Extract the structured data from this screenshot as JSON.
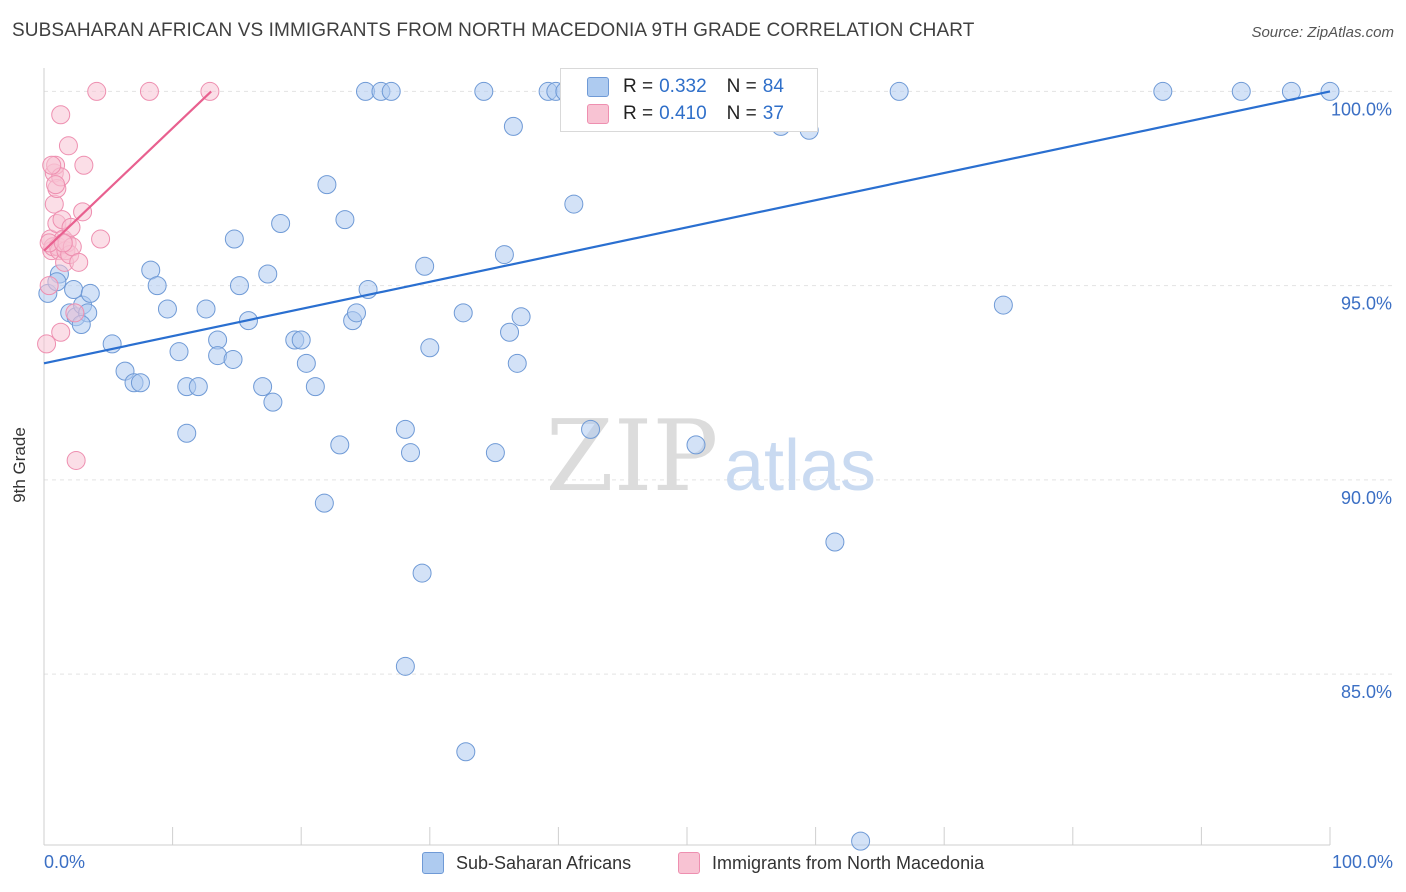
{
  "header": {
    "title": "SUBSAHARAN AFRICAN VS IMMIGRANTS FROM NORTH MACEDONIA 9TH GRADE CORRELATION CHART",
    "source": "Source: ZipAtlas.com"
  },
  "watermark": {
    "zip": "ZIP",
    "atlas": "atlas"
  },
  "legend_top": {
    "rows": [
      {
        "r_label": "R =",
        "r_value": "0.332",
        "n_label": "N =",
        "n_value": "84",
        "color": "#8fb4e6"
      },
      {
        "r_label": "R =",
        "r_value": "0.410",
        "n_label": "N =",
        "n_value": "37",
        "color": "#f4a9c0"
      }
    ]
  },
  "bottom_legend": {
    "items": [
      {
        "label": "Sub-Saharan Africans",
        "color": "#aecbf0"
      },
      {
        "label": "Immigrants from North Macedonia",
        "color": "#f8c3d3"
      }
    ]
  },
  "chart_data": {
    "type": "scatter",
    "title": "SUBSAHARAN AFRICAN VS IMMIGRANTS FROM NORTH MACEDONIA 9TH GRADE CORRELATION CHART",
    "xlabel": "",
    "ylabel": "9th Grade",
    "xlim": [
      0,
      100
    ],
    "ylim": [
      80.6,
      100.5
    ],
    "x_tick_labels": [
      "0.0%",
      "100.0%"
    ],
    "y_ticks": [
      100,
      95,
      90,
      85
    ],
    "y_tick_labels": [
      "100.0%",
      "95.0%",
      "90.0%",
      "85.0%"
    ],
    "grid": true,
    "series": [
      {
        "name": "Sub-Saharan Africans",
        "color": "#aecbf0",
        "edge": "#6f9ad6",
        "line_color": "#2a6fd0",
        "r": 0.332,
        "n": 84,
        "trend": {
          "x": [
            0,
            100
          ],
          "y": [
            93.0,
            100.0
          ]
        },
        "points": [
          [
            0.3,
            94.8
          ],
          [
            1.2,
            95.3
          ],
          [
            1.0,
            95.1
          ],
          [
            2.3,
            94.9
          ],
          [
            2.0,
            94.3
          ],
          [
            2.5,
            94.2
          ],
          [
            3.0,
            94.5
          ],
          [
            3.4,
            94.3
          ],
          [
            3.6,
            94.8
          ],
          [
            2.9,
            94.0
          ],
          [
            5.3,
            93.5
          ],
          [
            6.3,
            92.8
          ],
          [
            7.0,
            92.5
          ],
          [
            7.5,
            92.5
          ],
          [
            8.3,
            95.4
          ],
          [
            8.8,
            95.0
          ],
          [
            9.6,
            94.4
          ],
          [
            11.1,
            92.4
          ],
          [
            11.1,
            91.2
          ],
          [
            10.5,
            93.3
          ],
          [
            12.0,
            92.4
          ],
          [
            12.6,
            94.4
          ],
          [
            13.5,
            93.6
          ],
          [
            13.5,
            93.2
          ],
          [
            14.7,
            93.1
          ],
          [
            14.8,
            96.2
          ],
          [
            15.2,
            95.0
          ],
          [
            15.9,
            94.1
          ],
          [
            17.0,
            92.4
          ],
          [
            17.4,
            95.3
          ],
          [
            17.8,
            92.0
          ],
          [
            18.4,
            96.6
          ],
          [
            19.5,
            93.6
          ],
          [
            20.0,
            93.6
          ],
          [
            20.4,
            93.0
          ],
          [
            21.1,
            92.4
          ],
          [
            21.8,
            89.4
          ],
          [
            22.0,
            97.6
          ],
          [
            23.0,
            90.9
          ],
          [
            23.4,
            96.7
          ],
          [
            24.0,
            94.1
          ],
          [
            24.3,
            94.3
          ],
          [
            25.2,
            94.9
          ],
          [
            25.0,
            100.0
          ],
          [
            26.2,
            100.0
          ],
          [
            28.1,
            91.3
          ],
          [
            28.5,
            90.7
          ],
          [
            29.4,
            87.6
          ],
          [
            29.6,
            95.5
          ],
          [
            30.0,
            93.4
          ],
          [
            28.1,
            85.2
          ],
          [
            32.6,
            94.3
          ],
          [
            32.8,
            83.0
          ],
          [
            34.2,
            100.0
          ],
          [
            35.1,
            90.7
          ],
          [
            35.8,
            95.8
          ],
          [
            36.2,
            93.8
          ],
          [
            36.8,
            93.0
          ],
          [
            37.1,
            94.2
          ],
          [
            39.2,
            100.0
          ],
          [
            39.8,
            100.0
          ],
          [
            40.5,
            100.0
          ],
          [
            41.2,
            97.1
          ],
          [
            42.0,
            100.0
          ],
          [
            42.5,
            91.3
          ],
          [
            45.8,
            100.0
          ],
          [
            50.7,
            90.9
          ],
          [
            53.3,
            100.0
          ],
          [
            54.0,
            100.0
          ],
          [
            55.6,
            100.0
          ],
          [
            56.0,
            100.0
          ],
          [
            57.3,
            99.1
          ],
          [
            61.5,
            88.4
          ],
          [
            63.5,
            80.7
          ],
          [
            66.5,
            100.0
          ],
          [
            74.6,
            94.5
          ],
          [
            87.0,
            100.0
          ],
          [
            93.1,
            100.0
          ],
          [
            97.0,
            100.0
          ],
          [
            100.0,
            100.0
          ],
          [
            36.5,
            99.1
          ],
          [
            44.8,
            100.0
          ],
          [
            27.0,
            100.0
          ],
          [
            59.5,
            99.0
          ]
        ]
      },
      {
        "name": "Immigrants from North Macedonia",
        "color": "#f8c3d3",
        "edge": "#ee8fb0",
        "line_color": "#e8608f",
        "r": 0.41,
        "n": 37,
        "trend": {
          "x": [
            0,
            13.0
          ],
          "y": [
            95.9,
            100.0
          ]
        },
        "points": [
          [
            0.2,
            93.5
          ],
          [
            0.4,
            95.0
          ],
          [
            0.5,
            96.2
          ],
          [
            0.6,
            95.9
          ],
          [
            0.7,
            96.0
          ],
          [
            0.8,
            97.1
          ],
          [
            0.8,
            97.9
          ],
          [
            0.9,
            98.1
          ],
          [
            1.0,
            97.5
          ],
          [
            1.0,
            96.6
          ],
          [
            1.1,
            96.0
          ],
          [
            1.2,
            95.9
          ],
          [
            1.3,
            97.8
          ],
          [
            1.3,
            99.4
          ],
          [
            1.4,
            96.7
          ],
          [
            1.5,
            96.2
          ],
          [
            1.6,
            95.6
          ],
          [
            1.7,
            95.9
          ],
          [
            1.8,
            96.1
          ],
          [
            1.9,
            98.6
          ],
          [
            2.0,
            95.8
          ],
          [
            2.1,
            96.5
          ],
          [
            2.2,
            96.0
          ],
          [
            2.4,
            94.3
          ],
          [
            2.5,
            90.5
          ],
          [
            2.7,
            95.6
          ],
          [
            3.0,
            96.9
          ],
          [
            3.1,
            98.1
          ],
          [
            4.4,
            96.2
          ],
          [
            4.1,
            100.0
          ],
          [
            8.2,
            100.0
          ],
          [
            12.9,
            100.0
          ],
          [
            1.3,
            93.8
          ],
          [
            0.6,
            98.1
          ],
          [
            0.4,
            96.1
          ],
          [
            1.5,
            96.1
          ],
          [
            0.9,
            97.6
          ]
        ]
      }
    ]
  }
}
